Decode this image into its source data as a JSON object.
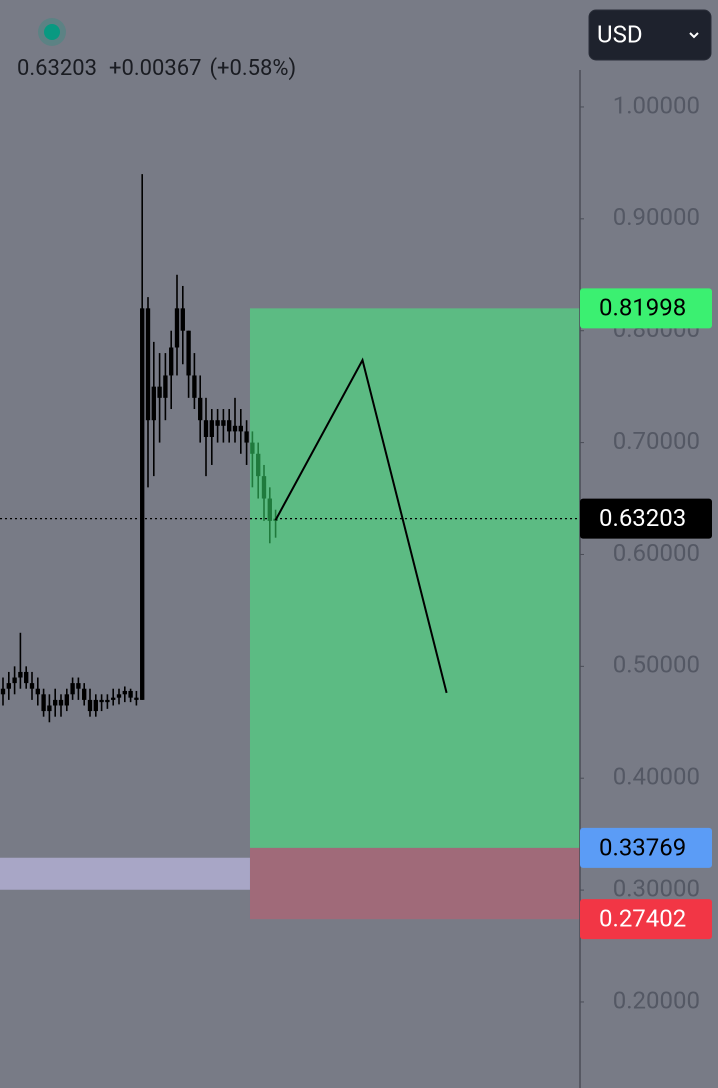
{
  "chart_data": {
    "type": "candlestick",
    "currency": "USD",
    "header": {
      "price": "0.63203",
      "change": "+0.00367",
      "change_pct": "(+0.58%)",
      "dot_color": "#089981"
    },
    "background": "#787b86",
    "xlim": [
      0,
      100
    ],
    "ylim": [
      0.1231,
      1.0956
    ],
    "yticks": [
      {
        "value": 1.0,
        "label": "1.00000"
      },
      {
        "value": 0.9,
        "label": "0.90000"
      },
      {
        "value": 0.8,
        "label": "0.80000"
      },
      {
        "value": 0.7,
        "label": "0.70000"
      },
      {
        "value": 0.6,
        "label": "0.60000"
      },
      {
        "value": 0.5,
        "label": "0.50000"
      },
      {
        "value": 0.4,
        "label": "0.40000"
      },
      {
        "value": 0.3,
        "label": "0.30000"
      },
      {
        "value": 0.2,
        "label": "0.20000"
      }
    ],
    "series": [
      {
        "color": "#000000",
        "x": [
          0,
          1,
          2,
          3,
          4,
          5,
          6,
          7,
          8,
          9,
          10,
          11,
          12,
          13,
          14,
          15,
          16,
          17,
          18,
          19,
          20,
          21,
          22,
          23,
          24,
          25,
          26,
          27,
          28,
          29,
          30,
          31,
          32,
          33,
          34,
          35,
          36,
          37,
          38,
          39,
          40,
          41,
          42
        ],
        "open": [
          0.475,
          0.48,
          0.485,
          0.49,
          0.495,
          0.485,
          0.48,
          0.475,
          0.46,
          0.465,
          0.47,
          0.465,
          0.475,
          0.485,
          0.48,
          0.47,
          0.46,
          0.47,
          0.468,
          0.47,
          0.472,
          0.475,
          0.478,
          0.472,
          0.47,
          0.82,
          0.72,
          0.75,
          0.74,
          0.76,
          0.785,
          0.82,
          0.8,
          0.76,
          0.74,
          0.72,
          0.705,
          0.72,
          0.715,
          0.72,
          0.71,
          0.715,
          0.71
        ],
        "high": [
          0.49,
          0.495,
          0.5,
          0.53,
          0.5,
          0.495,
          0.49,
          0.48,
          0.475,
          0.48,
          0.475,
          0.48,
          0.49,
          0.49,
          0.485,
          0.48,
          0.475,
          0.475,
          0.475,
          0.48,
          0.48,
          0.482,
          0.48,
          0.478,
          0.94,
          0.83,
          0.79,
          0.78,
          0.78,
          0.8,
          0.85,
          0.84,
          0.8,
          0.78,
          0.76,
          0.74,
          0.73,
          0.73,
          0.73,
          0.73,
          0.74,
          0.73,
          0.72
        ],
        "low": [
          0.465,
          0.47,
          0.475,
          0.48,
          0.48,
          0.47,
          0.465,
          0.455,
          0.45,
          0.455,
          0.455,
          0.46,
          0.47,
          0.47,
          0.465,
          0.455,
          0.455,
          0.46,
          0.462,
          0.465,
          0.466,
          0.468,
          0.468,
          0.465,
          0.47,
          0.66,
          0.67,
          0.7,
          0.72,
          0.73,
          0.76,
          0.77,
          0.74,
          0.73,
          0.7,
          0.67,
          0.68,
          0.7,
          0.7,
          0.7,
          0.7,
          0.69,
          0.68
        ],
        "close": [
          0.48,
          0.485,
          0.49,
          0.495,
          0.485,
          0.48,
          0.475,
          0.46,
          0.465,
          0.47,
          0.465,
          0.475,
          0.485,
          0.48,
          0.47,
          0.46,
          0.47,
          0.468,
          0.47,
          0.472,
          0.475,
          0.478,
          0.472,
          0.47,
          0.82,
          0.72,
          0.75,
          0.74,
          0.76,
          0.785,
          0.82,
          0.8,
          0.76,
          0.74,
          0.72,
          0.705,
          0.72,
          0.715,
          0.72,
          0.71,
          0.715,
          0.71,
          0.7
        ]
      },
      {
        "color": "#1f7a3c",
        "x": [
          43,
          44,
          45,
          46,
          47
        ],
        "open": [
          0.7,
          0.69,
          0.67,
          0.65,
          0.63
        ],
        "high": [
          0.71,
          0.7,
          0.68,
          0.66,
          0.64
        ],
        "low": [
          0.66,
          0.65,
          0.63,
          0.61,
          0.615
        ],
        "close": [
          0.69,
          0.67,
          0.65,
          0.63,
          0.632
        ]
      }
    ],
    "price_labels": [
      {
        "value": 0.81998,
        "color": "#3bf071",
        "text_color": "#000000"
      },
      {
        "value": 0.63203,
        "color": "#000000",
        "text_color": "#ffffff"
      },
      {
        "value": 0.33769,
        "color": "#5b9cf6",
        "text_color": "#000000"
      },
      {
        "value": 0.27402,
        "color": "#f23645",
        "text_color": "#ffffff"
      }
    ],
    "position": {
      "x_start": 43.1,
      "profit_color": "#5cbb83",
      "loss_color": "#a06a79"
    },
    "zone": {
      "x": [
        0,
        43.1
      ],
      "low": 0.3003,
      "high": 0.3289,
      "color": "#a8a6c6"
    },
    "projection": {
      "x": [
        47.5,
        62.5,
        77
      ],
      "y": [
        0.6306,
        0.7737,
        0.4763
      ],
      "color": "#000000"
    }
  }
}
